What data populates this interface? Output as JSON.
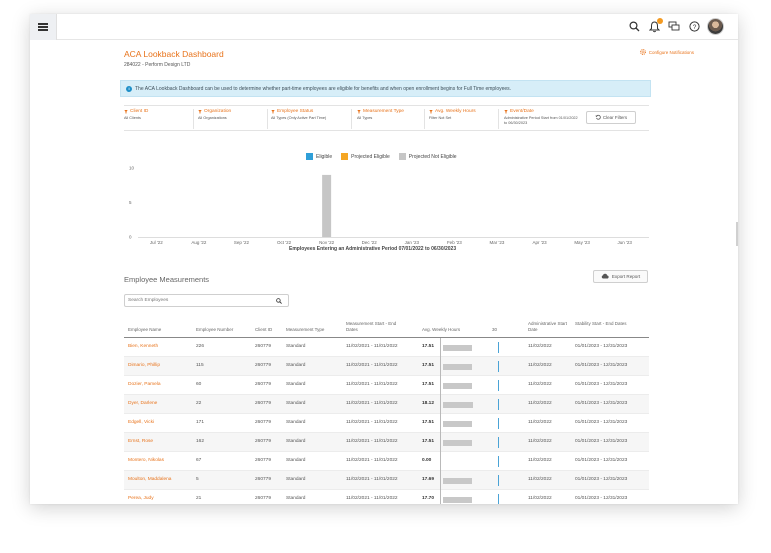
{
  "header": {
    "menu_icon": "hamburger-menu-icon",
    "icons": [
      "search-icon",
      "notifications-icon",
      "chat-icon",
      "help-icon"
    ],
    "notification_badge_color": "#f39a21"
  },
  "page": {
    "title": "ACA Lookback Dashboard",
    "subtitle": "284022 - Perform Design LTD",
    "configure_label": "Configure Notifications",
    "info_text": "The ACA Lookback Dashboard can be used to determine whether part-time employees are eligible for benefits and when open enrollment begins for Full Time employees."
  },
  "filters": [
    {
      "label": "Client ID",
      "value": "All Clients"
    },
    {
      "label": "Organization",
      "value": "All Organizations"
    },
    {
      "label": "Employee Status",
      "value": "All Types (Only Active Part Time)"
    },
    {
      "label": "Measurement Type",
      "value": "All Types"
    },
    {
      "label": "Avg. Weekly Hours",
      "value": "Filter Not Set"
    },
    {
      "label": "Event/Date",
      "value": "Administrative Period Start from 01/01/2022 to 06/30/2023"
    }
  ],
  "clear_filters_label": "Clear Filters",
  "chart_data": {
    "type": "bar",
    "title": "",
    "xlabel": "Employees Entering an Administrative Period 07/01/2022 to 06/30/2023",
    "ylabel": "",
    "ylim": [
      0,
      10
    ],
    "yticks": [
      "10",
      "5",
      "0"
    ],
    "categories": [
      "Jul '22",
      "Aug '22",
      "Sep '22",
      "Oct '22",
      "Nov '22",
      "Dec '22",
      "Jan '23",
      "Feb '23",
      "Mar '23",
      "Apr '23",
      "May '23",
      "Jun '23"
    ],
    "series": [
      {
        "name": "Eligible",
        "color": "#2f9fd8",
        "values": [
          0,
          0,
          0,
          0,
          0,
          0,
          0,
          0,
          0,
          0,
          0,
          0
        ]
      },
      {
        "name": "Projected Eligible",
        "color": "#f5a623",
        "values": [
          0,
          0,
          0,
          0,
          0,
          0,
          0,
          0,
          0,
          0,
          0,
          0
        ]
      },
      {
        "name": "Projected Not Eligible",
        "color": "#c6c6c6",
        "values": [
          0,
          0,
          0,
          0,
          9,
          0,
          0,
          0,
          0,
          0,
          0,
          0
        ]
      }
    ],
    "legend_position": "top-center",
    "grid": false
  },
  "measurements": {
    "title": "Employee Measurements",
    "export_label": "Export Report",
    "search_placeholder": "Search Employees",
    "columns": [
      "Employee Name",
      "Employee Number",
      "Client ID",
      "Measurement Type",
      "Measurement Start - End Dates",
      "Avg. Weekly Hours",
      "30",
      "Administrative Start Date",
      "Stability Start - End Dates"
    ],
    "rows": [
      {
        "name": "Bien, Kenneth",
        "number": "226",
        "client": "260779",
        "type": "Standard",
        "dates": "11/02/2021 - 11/01/2022",
        "hours": "17.51",
        "hours_value": 17.51,
        "admin": "11/02/2022",
        "stability": "01/01/2023 - 12/31/2023"
      },
      {
        "name": "Dimario, Phillip",
        "number": "115",
        "client": "260779",
        "type": "Standard",
        "dates": "11/02/2021 - 11/01/2022",
        "hours": "17.51",
        "hours_value": 17.51,
        "admin": "11/02/2022",
        "stability": "01/01/2023 - 12/31/2023"
      },
      {
        "name": "Dozier, Pamela",
        "number": "60",
        "client": "260779",
        "type": "Standard",
        "dates": "11/02/2021 - 11/01/2022",
        "hours": "17.51",
        "hours_value": 17.51,
        "admin": "11/02/2022",
        "stability": "01/01/2023 - 12/31/2023"
      },
      {
        "name": "Dyer, Darlene",
        "number": "22",
        "client": "260779",
        "type": "Standard",
        "dates": "11/02/2021 - 11/01/2022",
        "hours": "18.12",
        "hours_value": 18.12,
        "admin": "11/02/2022",
        "stability": "01/01/2023 - 12/31/2023"
      },
      {
        "name": "Edgell, Vicki",
        "number": "171",
        "client": "260779",
        "type": "Standard",
        "dates": "11/02/2021 - 11/01/2022",
        "hours": "17.51",
        "hours_value": 17.51,
        "admin": "11/02/2022",
        "stability": "01/01/2023 - 12/31/2023"
      },
      {
        "name": "Ernst, Rose",
        "number": "162",
        "client": "260779",
        "type": "Standard",
        "dates": "11/02/2021 - 11/01/2022",
        "hours": "17.51",
        "hours_value": 17.51,
        "admin": "11/02/2022",
        "stability": "01/01/2023 - 12/31/2023"
      },
      {
        "name": "Montero, Nikolas",
        "number": "67",
        "client": "260779",
        "type": "Standard",
        "dates": "11/02/2021 - 11/01/2022",
        "hours": "0.00",
        "hours_value": 0,
        "admin": "11/02/2022",
        "stability": "01/01/2023 - 12/31/2023"
      },
      {
        "name": "Moulton, Maddalena",
        "number": "5",
        "client": "260779",
        "type": "Standard",
        "dates": "11/02/2021 - 11/01/2022",
        "hours": "17.69",
        "hours_value": 17.69,
        "admin": "11/02/2022",
        "stability": "01/01/2023 - 12/31/2023"
      },
      {
        "name": "Perea, Judy",
        "number": "21",
        "client": "260779",
        "type": "Standard",
        "dates": "11/02/2021 - 11/01/2022",
        "hours": "17.70",
        "hours_value": 17.7,
        "admin": "11/02/2022",
        "stability": "01/01/2023 - 12/31/2023"
      }
    ]
  },
  "colors": {
    "accent": "#e8731b",
    "info_bg": "#d7eef8",
    "info_icon": "#1e8fc8"
  }
}
